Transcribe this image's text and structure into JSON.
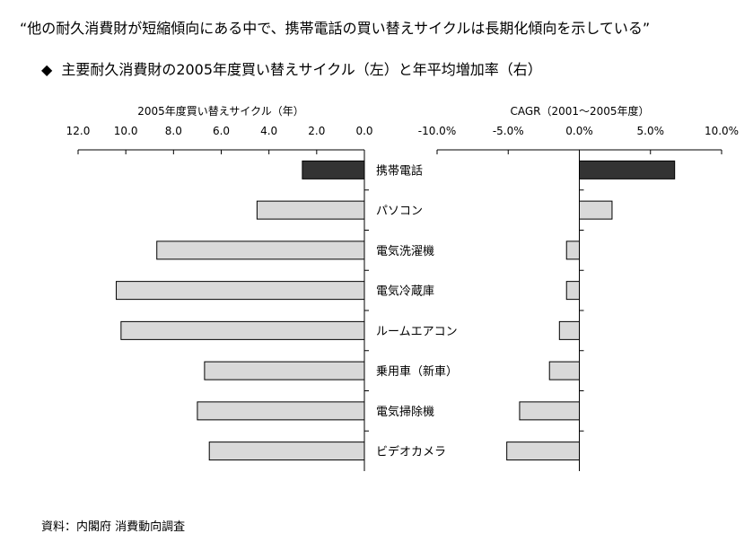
{
  "headline": "“他の耐久消費財が短縮傾向にある中で、携帯電話の買い替えサイクルは長期化傾向を示している”",
  "subtitle": {
    "marker": "◆",
    "text": "主要耐久消費財の2005年度買い替えサイクル（左）と年平均増加率（右）"
  },
  "source": "資料：内閣府 消費動向調査",
  "colors": {
    "highlight_bar": "#333333",
    "normal_bar": "#d9d9d9",
    "bar_stroke": "#000000",
    "axis": "#000000"
  },
  "chart_data": [
    {
      "type": "bar",
      "orientation": "horizontal",
      "direction": "right-to-left",
      "title": "2005年度買い替えサイクル（年）",
      "categories": [
        "携帯電話",
        "パソコン",
        "電気洗濯機",
        "電気冷蔵庫",
        "ルームエアコン",
        "乗用車（新車）",
        "電気掃除機",
        "ビデオカメラ"
      ],
      "values": [
        2.6,
        4.5,
        8.7,
        10.4,
        10.2,
        6.7,
        7.0,
        6.5
      ],
      "xlim": [
        0,
        12
      ],
      "ticks": [
        12.0,
        10.0,
        8.0,
        6.0,
        4.0,
        2.0,
        0.0
      ],
      "tick_labels": [
        "12.0",
        "10.0",
        "8.0",
        "6.0",
        "4.0",
        "2.0",
        "0.0"
      ],
      "highlight": "携帯電話",
      "grid": false
    },
    {
      "type": "bar",
      "orientation": "horizontal",
      "title": "CAGR（2001～2005年度）",
      "categories": [
        "携帯電話",
        "パソコン",
        "電気洗濯機",
        "電気冷蔵庫",
        "ルームエアコン",
        "乗用車（新車）",
        "電気掃除機",
        "ビデオカメラ"
      ],
      "values": [
        6.7,
        2.3,
        -0.9,
        -0.9,
        -1.4,
        -2.1,
        -4.2,
        -5.1
      ],
      "xlim": [
        -10,
        10
      ],
      "ticks": [
        -10,
        -5,
        0,
        5,
        10
      ],
      "tick_labels": [
        "-10.0%",
        "-5.0%",
        "0.0%",
        "5.0%",
        "10.0%"
      ],
      "highlight": "携帯電話",
      "grid": false
    }
  ]
}
